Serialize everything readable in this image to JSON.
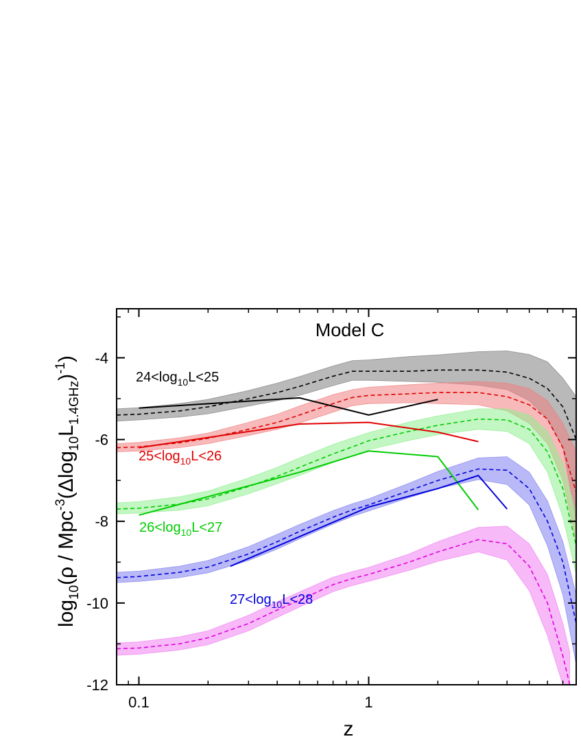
{
  "chart_data": {
    "type": "line",
    "title": "Model C",
    "xlabel": "z",
    "ylabel": {
      "prefix": "log",
      "prefix_sub": "10",
      "main": "(ρ / Mpc",
      "main_sup": "-3",
      "part2": "(Δlog",
      "part2_sub": "10",
      "part3": "L",
      "part3_sub": "1.4GHz",
      "part4": ")",
      "part4_sup": "-1",
      "part5": ")"
    },
    "x_scale": "log",
    "xlim": [
      0.08,
      8.0
    ],
    "ylim": [
      -12,
      -2.8
    ],
    "x_ticks": [
      "0.1",
      "1"
    ],
    "y_ticks": [
      "-4",
      "-6",
      "-8",
      "-10",
      "-12"
    ],
    "series": [
      {
        "name": "24<log10L<25",
        "label": {
          "a": "24<log",
          "sub": "10",
          "b": "L<25"
        },
        "color": "#000000",
        "band_color": "#808080",
        "model_x": [
          0.08,
          0.1,
          0.15,
          0.2,
          0.3,
          0.4,
          0.5,
          0.7,
          0.85,
          1.0,
          1.5,
          2.0,
          3.0,
          4.0,
          5.0,
          6.0,
          7.0,
          8.0
        ],
        "model_median": [
          -5.4,
          -5.38,
          -5.3,
          -5.2,
          -5.0,
          -4.85,
          -4.7,
          -4.45,
          -4.33,
          -4.33,
          -4.33,
          -4.3,
          -4.3,
          -4.35,
          -4.5,
          -4.75,
          -5.2,
          -6.0
        ],
        "model_upper": [
          -5.25,
          -5.22,
          -5.12,
          -5.02,
          -4.8,
          -4.62,
          -4.46,
          -4.2,
          -4.07,
          -4.05,
          -3.97,
          -3.93,
          -3.85,
          -3.83,
          -3.92,
          -4.1,
          -4.5,
          -4.95
        ],
        "model_lower": [
          -5.55,
          -5.52,
          -5.45,
          -5.37,
          -5.18,
          -5.05,
          -4.92,
          -4.68,
          -4.55,
          -4.55,
          -4.58,
          -4.6,
          -4.67,
          -4.78,
          -5.05,
          -5.5,
          -6.2,
          -8.0
        ],
        "obs_x": [
          0.1,
          0.5,
          1.0,
          2.0
        ],
        "obs_y": [
          -5.23,
          -4.98,
          -5.4,
          -5.02
        ]
      },
      {
        "name": "25<log10L<26",
        "label": {
          "a": "25<log",
          "sub": "10",
          "b": "L<26"
        },
        "color": "#e00000",
        "band_color": "#f08080",
        "model_x": [
          0.08,
          0.1,
          0.15,
          0.2,
          0.3,
          0.4,
          0.5,
          0.7,
          0.85,
          1.0,
          1.5,
          2.0,
          3.0,
          4.0,
          5.0,
          6.0,
          7.0,
          8.0
        ],
        "model_median": [
          -6.2,
          -6.18,
          -6.08,
          -5.97,
          -5.75,
          -5.58,
          -5.4,
          -5.12,
          -4.97,
          -4.92,
          -4.88,
          -4.85,
          -4.85,
          -4.95,
          -5.15,
          -5.5,
          -6.2,
          -7.3
        ],
        "model_upper": [
          -6.1,
          -6.07,
          -5.96,
          -5.84,
          -5.58,
          -5.38,
          -5.18,
          -4.9,
          -4.78,
          -4.72,
          -4.66,
          -4.62,
          -4.58,
          -4.62,
          -4.75,
          -5.05,
          -5.6,
          -6.3
        ],
        "model_lower": [
          -6.3,
          -6.28,
          -6.2,
          -6.1,
          -5.9,
          -5.75,
          -5.6,
          -5.33,
          -5.17,
          -5.12,
          -5.1,
          -5.12,
          -5.15,
          -5.3,
          -5.6,
          -6.1,
          -7.0,
          -8.5
        ],
        "obs_x": [
          0.1,
          0.5,
          1.0,
          2.0,
          3.0
        ],
        "obs_y": [
          -6.2,
          -5.62,
          -5.58,
          -5.82,
          -6.05
        ]
      },
      {
        "name": "26<log10L<27",
        "label": {
          "a": "26<log",
          "sub": "10",
          "b": "L<27"
        },
        "color": "#00cc00",
        "band_color": "#90ee90",
        "model_x": [
          0.08,
          0.1,
          0.15,
          0.2,
          0.3,
          0.4,
          0.5,
          0.7,
          0.85,
          1.0,
          1.5,
          2.0,
          3.0,
          4.0,
          5.0,
          6.0,
          7.0,
          8.0
        ],
        "model_median": [
          -7.7,
          -7.68,
          -7.58,
          -7.45,
          -7.15,
          -6.9,
          -6.68,
          -6.35,
          -6.18,
          -6.03,
          -5.8,
          -5.65,
          -5.5,
          -5.52,
          -5.75,
          -6.3,
          -7.2,
          -8.6
        ],
        "model_upper": [
          -7.55,
          -7.52,
          -7.4,
          -7.26,
          -6.94,
          -6.68,
          -6.45,
          -6.12,
          -5.96,
          -5.83,
          -5.57,
          -5.42,
          -5.25,
          -5.25,
          -5.4,
          -5.8,
          -6.6,
          -7.8
        ],
        "model_lower": [
          -7.82,
          -7.8,
          -7.73,
          -7.62,
          -7.33,
          -7.08,
          -6.88,
          -6.56,
          -6.4,
          -6.25,
          -6.02,
          -5.88,
          -5.75,
          -5.8,
          -6.1,
          -6.8,
          -7.9,
          -9.3
        ],
        "obs_x": [
          0.1,
          0.5,
          1.0,
          2.0,
          3.0
        ],
        "obs_y": [
          -7.85,
          -6.8,
          -6.28,
          -6.42,
          -7.72
        ]
      },
      {
        "name": "27<log10L<28",
        "label": {
          "a": "27<log",
          "sub": "10",
          "b": "L<28"
        },
        "color": "#0000dd",
        "band_color": "#8080f0",
        "model_x": [
          0.08,
          0.1,
          0.15,
          0.2,
          0.3,
          0.4,
          0.5,
          0.7,
          0.85,
          1.0,
          1.5,
          2.0,
          3.0,
          4.0,
          5.0,
          6.0,
          7.0,
          8.0
        ],
        "model_median": [
          -9.38,
          -9.35,
          -9.25,
          -9.12,
          -8.8,
          -8.5,
          -8.25,
          -7.9,
          -7.72,
          -7.6,
          -7.25,
          -7.0,
          -6.72,
          -6.75,
          -7.2,
          -8.0,
          -9.0,
          -10.5
        ],
        "model_upper": [
          -9.25,
          -9.22,
          -9.1,
          -8.96,
          -8.62,
          -8.32,
          -8.08,
          -7.74,
          -7.57,
          -7.45,
          -7.07,
          -6.78,
          -6.45,
          -6.42,
          -6.8,
          -7.5,
          -8.5,
          -9.8
        ],
        "model_lower": [
          -9.5,
          -9.47,
          -9.38,
          -9.26,
          -8.96,
          -8.68,
          -8.43,
          -8.07,
          -7.88,
          -7.75,
          -7.42,
          -7.2,
          -6.98,
          -7.1,
          -7.6,
          -8.6,
          -9.8,
          -11.5
        ],
        "obs_x": [
          0.25,
          1.0,
          2.0,
          3.0,
          4.0
        ],
        "obs_y": [
          -9.1,
          -7.65,
          -7.2,
          -6.88,
          -7.7
        ]
      },
      {
        "name": "",
        "label": null,
        "color": "#e000e0",
        "band_color": "#f080f0",
        "model_x": [
          0.08,
          0.1,
          0.15,
          0.2,
          0.3,
          0.4,
          0.5,
          0.7,
          0.85,
          1.0,
          1.5,
          2.0,
          3.0,
          4.0,
          5.0,
          6.0,
          7.0,
          7.5
        ],
        "model_median": [
          -11.12,
          -11.1,
          -11.0,
          -10.85,
          -10.5,
          -10.17,
          -9.93,
          -9.55,
          -9.4,
          -9.3,
          -9.0,
          -8.75,
          -8.45,
          -8.55,
          -9.1,
          -10.0,
          -11.3,
          -12.0
        ],
        "model_upper": [
          -10.98,
          -10.95,
          -10.83,
          -10.68,
          -10.3,
          -9.97,
          -9.73,
          -9.37,
          -9.23,
          -9.13,
          -8.8,
          -8.5,
          -8.15,
          -8.12,
          -8.55,
          -9.3,
          -10.5,
          -11.2
        ],
        "model_lower": [
          -11.28,
          -11.25,
          -11.15,
          -11.02,
          -10.68,
          -10.35,
          -10.1,
          -9.72,
          -9.57,
          -9.47,
          -9.2,
          -8.98,
          -8.75,
          -8.95,
          -9.7,
          -10.8,
          -12.0,
          -12.0
        ],
        "obs_x": [],
        "obs_y": []
      }
    ],
    "legend_placement": "inline labels"
  }
}
